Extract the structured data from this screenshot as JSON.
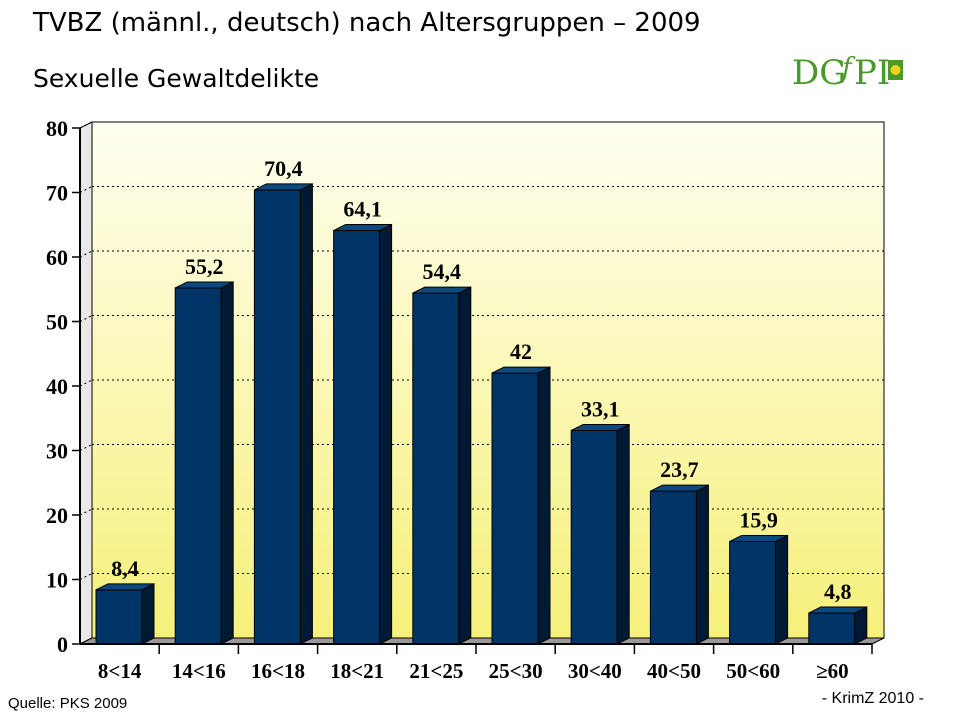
{
  "title": "TVBZ (männl., deutsch) nach Altersgruppen – 2009",
  "subtitle": "Sexuelle Gewaltdelikte",
  "logo_text": "DGfPI",
  "source_label": "Quelle:",
  "source_value": "PKS 2009",
  "footer_right": "- KrimZ 2010 -",
  "colors": {
    "bar_front": "#003366",
    "bar_side": "#001a33",
    "bar_top": "#0a4a80",
    "plot_top": "#fffff2",
    "plot_bottom": "#f6f07a",
    "logo_green": "#4a9a2a",
    "logo_yellow": "#f2d21a"
  },
  "chart_data": {
    "type": "bar",
    "title": "Sexuelle Gewaltdelikte",
    "xlabel": "",
    "ylabel": "",
    "categories": [
      "8<14",
      "14<16",
      "16<18",
      "18<21",
      "21<25",
      "25<30",
      "30<40",
      "40<50",
      "50<60",
      "≥60"
    ],
    "values": [
      8.4,
      55.2,
      70.4,
      64.1,
      54.4,
      42,
      33.1,
      23.7,
      15.9,
      4.8
    ],
    "value_labels": [
      "8,4",
      "55,2",
      "70,4",
      "64,1",
      "54,4",
      "42",
      "33,1",
      "23,7",
      "15,9",
      "4,8"
    ],
    "ylim": [
      0,
      80
    ],
    "yticks": [
      0,
      10,
      20,
      30,
      40,
      50,
      60,
      70,
      80
    ],
    "grid": "horizontal dotted",
    "three_d": true,
    "legend": "none"
  }
}
